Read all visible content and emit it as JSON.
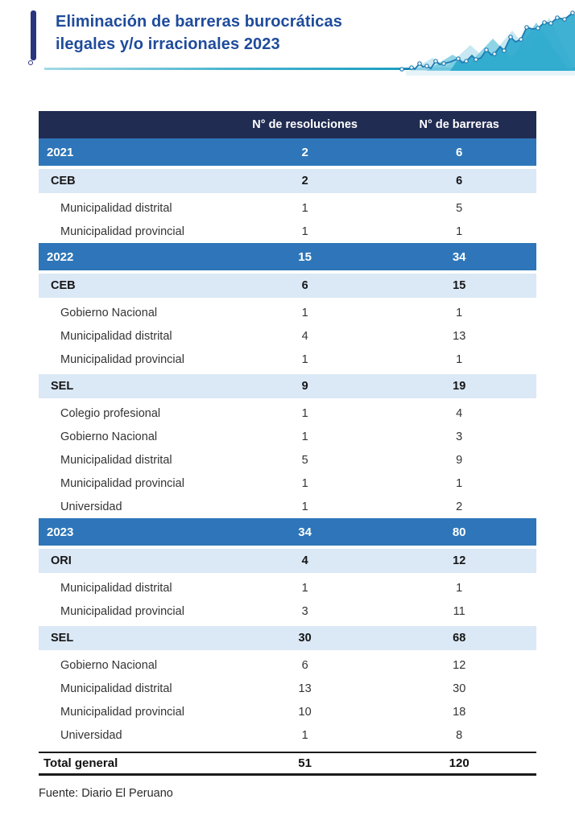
{
  "header": {
    "title_line1": "Eliminación de barreras burocráticas",
    "title_line2": "ilegales y/o irracionales 2023"
  },
  "chart_data": {
    "type": "table",
    "title": "Eliminación de barreras burocráticas ilegales y/o irracionales 2023",
    "columns": [
      "",
      "N° de resoluciones",
      "N° de barreras"
    ],
    "rows": [
      {
        "type": "year",
        "label": "2021",
        "res": 2,
        "bar": 6
      },
      {
        "type": "sub",
        "label": "CEB",
        "res": 2,
        "bar": 6
      },
      {
        "type": "detail",
        "label": "Municipalidad distrital",
        "res": 1,
        "bar": 5
      },
      {
        "type": "detail",
        "label": "Municipalidad provincial",
        "res": 1,
        "bar": 1
      },
      {
        "type": "year",
        "label": "2022",
        "res": 15,
        "bar": 34
      },
      {
        "type": "sub",
        "label": "CEB",
        "res": 6,
        "bar": 15
      },
      {
        "type": "detail",
        "label": "Gobierno Nacional",
        "res": 1,
        "bar": 1
      },
      {
        "type": "detail",
        "label": "Municipalidad distrital",
        "res": 4,
        "bar": 13
      },
      {
        "type": "detail",
        "label": "Municipalidad provincial",
        "res": 1,
        "bar": 1
      },
      {
        "type": "sub",
        "label": "SEL",
        "res": 9,
        "bar": 19
      },
      {
        "type": "detail",
        "label": "Colegio profesional",
        "res": 1,
        "bar": 4
      },
      {
        "type": "detail",
        "label": "Gobierno Nacional",
        "res": 1,
        "bar": 3
      },
      {
        "type": "detail",
        "label": "Municipalidad distrital",
        "res": 5,
        "bar": 9
      },
      {
        "type": "detail",
        "label": "Municipalidad provincial",
        "res": 1,
        "bar": 1
      },
      {
        "type": "detail",
        "label": "Universidad",
        "res": 1,
        "bar": 2
      },
      {
        "type": "year",
        "label": "2023",
        "res": 34,
        "bar": 80
      },
      {
        "type": "sub",
        "label": "ORI",
        "res": 4,
        "bar": 12
      },
      {
        "type": "detail",
        "label": "Municipalidad distrital",
        "res": 1,
        "bar": 1
      },
      {
        "type": "detail",
        "label": "Municipalidad provincial",
        "res": 3,
        "bar": 11
      },
      {
        "type": "sub",
        "label": "SEL",
        "res": 30,
        "bar": 68
      },
      {
        "type": "detail",
        "label": "Gobierno Nacional",
        "res": 6,
        "bar": 12
      },
      {
        "type": "detail",
        "label": "Municipalidad distrital",
        "res": 13,
        "bar": 30
      },
      {
        "type": "detail",
        "label": "Municipalidad provincial",
        "res": 10,
        "bar": 18
      },
      {
        "type": "detail",
        "label": "Universidad",
        "res": 1,
        "bar": 8
      },
      {
        "type": "total",
        "label": "Total general",
        "res": 51,
        "bar": 120
      }
    ],
    "source": "Fuente: Diario El Peruano"
  },
  "colors": {
    "header_navy": "#212c52",
    "year_blue": "#2e76b9",
    "sub_light_blue": "#dbe8f6",
    "title_blue": "#1e4b9b",
    "accent_bar_blue": "#2a3580",
    "teal_line": "#1a9cc0"
  }
}
